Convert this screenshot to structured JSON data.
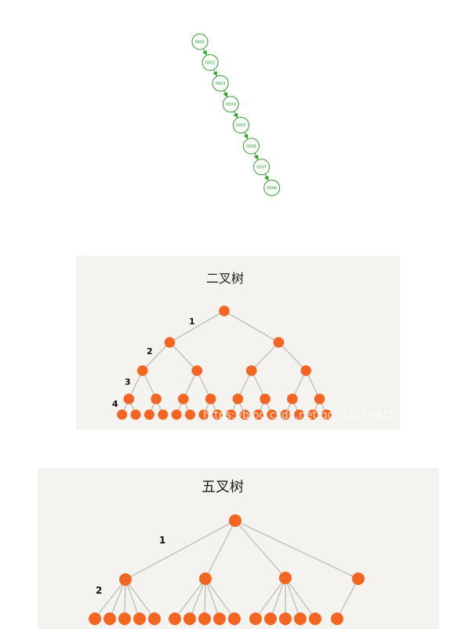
{
  "chain": {
    "nodes": [
      "0001",
      "0002",
      "0003",
      "0004",
      "0005",
      "0006",
      "0007",
      "0008"
    ],
    "color": "#2e9e2e"
  },
  "binary_tree": {
    "title": "二叉树",
    "branching": 2,
    "depth": 5,
    "level_labels": [
      "1",
      "2",
      "3",
      "4"
    ],
    "node_color": "#f26522",
    "watermark": "https://blog.csdn.net/qq_32519415"
  },
  "quinary_tree": {
    "title": "五叉树",
    "level_labels": [
      "1",
      "2"
    ],
    "level1_children": 4,
    "leaf_counts": [
      5,
      5,
      5,
      1
    ],
    "node_color": "#f26522"
  }
}
